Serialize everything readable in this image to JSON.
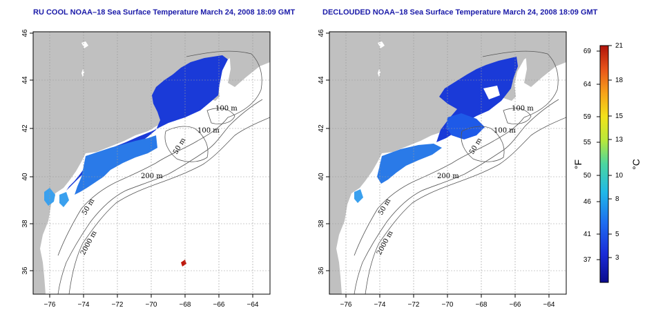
{
  "panels": [
    {
      "title": "RU COOL NOAA–18 Sea Surface Temperature March 24, 2008 18:09 GMT",
      "contour_labels": [
        "100 m",
        "100 m",
        "50 m",
        "200 m",
        "50 m",
        "2000 m"
      ]
    },
    {
      "title": "DECLOUDED NOAA–18 Sea Surface Temperature March 24, 2008 18:09 GMT",
      "contour_labels": [
        "100 m",
        "100 m",
        "50 m",
        "200 m",
        "50 m",
        "2000 m"
      ]
    }
  ],
  "axes": {
    "x_ticks": [
      "−76",
      "−74",
      "−72",
      "−70",
      "−68",
      "−66",
      "−64"
    ],
    "y_ticks": [
      "36",
      "38",
      "40",
      "42",
      "44",
      "46"
    ]
  },
  "colorbar": {
    "fahrenheit_ticks": [
      "69",
      "64",
      "59",
      "55",
      "50",
      "46",
      "41",
      "37"
    ],
    "celsius_ticks": [
      "21",
      "18",
      "15",
      "13",
      "10",
      "8",
      "5",
      "3"
    ],
    "left_unit": "°F",
    "right_unit": "°C",
    "colors": [
      "#0a0a8c",
      "#1a2bd8",
      "#1e6cf0",
      "#1fb8e8",
      "#4bd6a0",
      "#b8e83a",
      "#f2e21a",
      "#f7a21a",
      "#e8541a",
      "#b0140c"
    ]
  },
  "colors": {
    "land": "#c0c0c0",
    "ocean": "#ffffff",
    "sst_cold": "#1a3ad8",
    "sst_mid": "#2a7ae8",
    "title": "#1a1aa8"
  }
}
